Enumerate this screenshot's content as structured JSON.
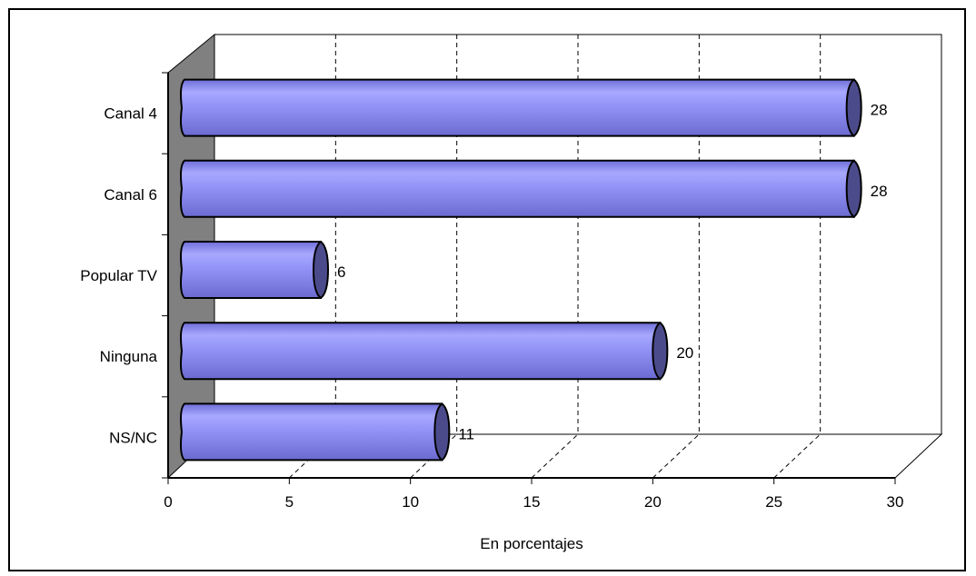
{
  "chart_data": {
    "type": "bar",
    "orientation": "horizontal",
    "style": "3d-cylinder",
    "categories": [
      "Canal 4",
      "Canal 6",
      "Popular TV",
      "Ninguna",
      "NS/NC"
    ],
    "values": [
      28,
      28,
      6,
      20,
      11
    ],
    "data_labels": [
      "28",
      "28",
      "6",
      "20",
      "11"
    ],
    "xlabel": "En porcentajes",
    "xlim": [
      0,
      30
    ],
    "x_ticks": [
      "0",
      "5",
      "10",
      "15",
      "20",
      "25",
      "30"
    ],
    "grid": "vertical dashed",
    "legend": "none"
  },
  "colors": {
    "bar_fill": "#8c8cf2",
    "bar_light": "#b4b4ff",
    "bar_cap": "#4b4b8c",
    "wall": "#808080",
    "grid": "#000000"
  }
}
